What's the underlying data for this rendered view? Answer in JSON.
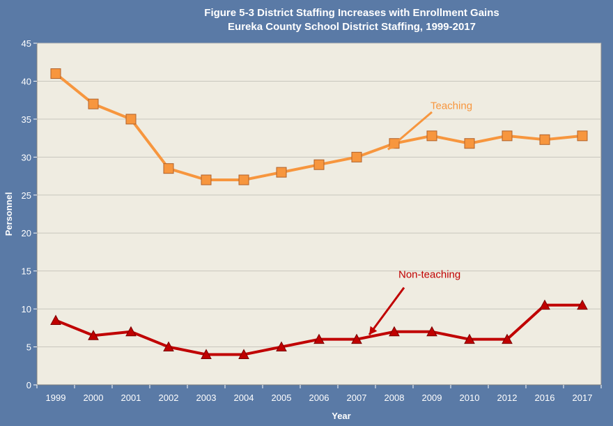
{
  "colors": {
    "background": "#5a7aa6",
    "plot_area": "#efece1",
    "gridline": "#c8c6bd",
    "teaching_line": "#f7963e",
    "teaching_marker": "#f7963e",
    "teaching_marker_edge": "#b0612a",
    "nonteaching_line": "#c00000",
    "nonteaching_marker": "#c00000",
    "nonteaching_marker_edge": "#7a0000",
    "axis_text": "#ffffff"
  },
  "chart_data": {
    "type": "line",
    "title": "Figure 5-3 District Staffing Increases with Enrollment Gains",
    "subtitle": "Eureka County School District Staffing, 1999-2017",
    "xlabel": "Year",
    "ylabel": "Personnel",
    "ylim": [
      0,
      45
    ],
    "yticks": [
      0,
      5,
      10,
      15,
      20,
      25,
      30,
      35,
      40,
      45
    ],
    "grid": true,
    "categories": [
      "1999",
      "2000",
      "2001",
      "2002",
      "2003",
      "2004",
      "2005",
      "2006",
      "2007",
      "2008",
      "2009",
      "2010",
      "2012",
      "2016",
      "2017"
    ],
    "series": [
      {
        "name": "Teaching",
        "marker": "square",
        "values": [
          41,
          37,
          35,
          28.5,
          27,
          27,
          28,
          29,
          30,
          31.8,
          32.8,
          31.8,
          32.8,
          32.3,
          32.8
        ]
      },
      {
        "name": "Non-teaching",
        "marker": "triangle",
        "values": [
          8.5,
          6.5,
          7,
          5,
          4,
          4,
          5,
          6,
          6,
          7,
          7,
          6,
          6,
          10.5,
          10.5
        ]
      }
    ],
    "annotations": [
      {
        "text": "Teaching",
        "series": "Teaching",
        "arrow_to_category": "2008"
      },
      {
        "text": "Non-teaching",
        "series": "Non-teaching",
        "arrow_to_category": "2007"
      }
    ]
  }
}
